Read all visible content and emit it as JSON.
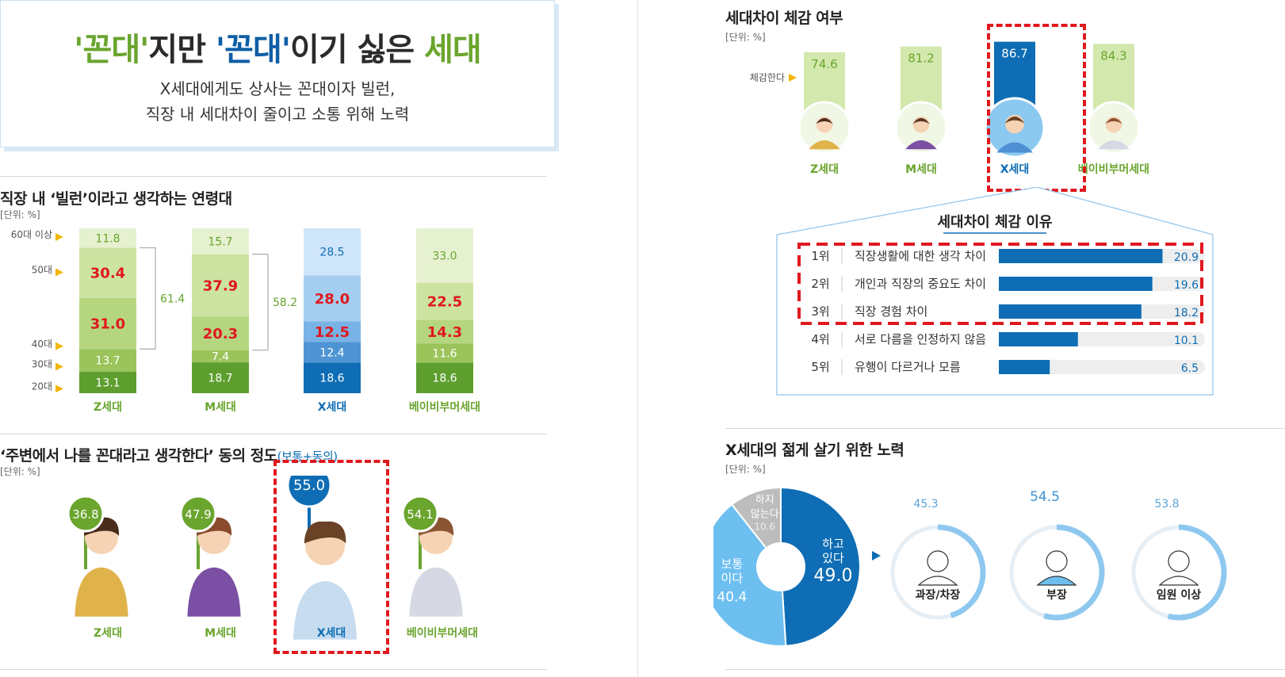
{
  "header": {
    "title_part1": "'꼰대'",
    "title_part2": "지만 ",
    "title_part3": "'꼰대'",
    "title_part4": "이기 싫은 ",
    "title_part5": "세대",
    "subtitle_line1": "X세대에게도 상사는 꼰대이자 빌런,",
    "subtitle_line2": "직장 내 세대차이 줄이고 소통 위해 노력"
  },
  "colors": {
    "green": "#6aa52e",
    "blue": "#0e6db4",
    "red": "#e0181f",
    "light_blue": "#7cc0ec"
  },
  "chart_data": [
    {
      "id": "villain_age",
      "type": "bar",
      "stacked": true,
      "title": "직장 내 ‘빌런’이라고 생각하는 연령대",
      "unit": "[단위: %]",
      "categories": [
        "Z세대",
        "M세대",
        "X세대",
        "베이비부머세대"
      ],
      "series": [
        {
          "name": "20대",
          "values": [
            13.1,
            18.7,
            18.6,
            18.6
          ]
        },
        {
          "name": "30대",
          "values": [
            13.7,
            7.4,
            12.4,
            11.6
          ]
        },
        {
          "name": "40대",
          "values": [
            31.0,
            20.3,
            12.5,
            14.3
          ]
        },
        {
          "name": "50대",
          "values": [
            30.4,
            37.9,
            28.0,
            22.5
          ]
        },
        {
          "name": "60대 이상",
          "values": [
            11.8,
            15.7,
            28.5,
            33.0
          ]
        }
      ],
      "brackets": [
        {
          "category": "Z세대",
          "value": "61.4"
        },
        {
          "category": "M세대",
          "value": "58.2"
        }
      ]
    },
    {
      "id": "self_kkondae",
      "type": "bar",
      "title": "‘주변에서 나를 꼰대라고 생각한다’ 동의 정도",
      "title_note": "(보통+동의)",
      "unit": "[단위: %]",
      "categories": [
        "Z세대",
        "M세대",
        "X세대",
        "베이비부머세대"
      ],
      "values": [
        36.8,
        47.9,
        55.0,
        54.1
      ]
    },
    {
      "id": "gen_gap",
      "type": "bar",
      "title": "세대차이 체감 여부",
      "unit": "[단위: %]",
      "row_label": "체감한다",
      "categories": [
        "Z세대",
        "M세대",
        "X세대",
        "베이비부머세대"
      ],
      "values": [
        74.6,
        81.2,
        86.7,
        84.3
      ]
    },
    {
      "id": "gap_reasons",
      "type": "bar",
      "orientation": "horizontal",
      "title": "세대차이 체감 이유",
      "categories": [
        "직장생활에 대한 생각 차이",
        "개인과 직장의 중요도 차이",
        "직장 경험 차이",
        "서로 다름을 인정하지 않음",
        "유행이 다르거나 모름"
      ],
      "ranks": [
        "1위",
        "2위",
        "3위",
        "4위",
        "5위"
      ],
      "values": [
        20.9,
        19.6,
        18.2,
        10.1,
        6.5
      ],
      "xlim": [
        0,
        25
      ]
    },
    {
      "id": "young_effort",
      "type": "pie",
      "title": "X세대의 젊게 살기 위한 노력",
      "unit": "[단위: %]",
      "slices": [
        {
          "label_line1": "하고",
          "label_line2": "있다",
          "value": 49.0
        },
        {
          "label_line1": "보통",
          "label_line2": "이다",
          "value": 40.4
        },
        {
          "label_line1": "하지",
          "label_line2": "않는다",
          "value": 10.6
        }
      ]
    },
    {
      "id": "effort_by_position",
      "type": "bar",
      "categories": [
        "과장/차장",
        "부장",
        "임원 이상"
      ],
      "values": [
        45.3,
        54.5,
        53.8
      ],
      "ylim": [
        0,
        100
      ]
    }
  ],
  "left_axis_labels": [
    "60대 이상",
    "50대",
    "40대",
    "30대",
    "20대"
  ]
}
